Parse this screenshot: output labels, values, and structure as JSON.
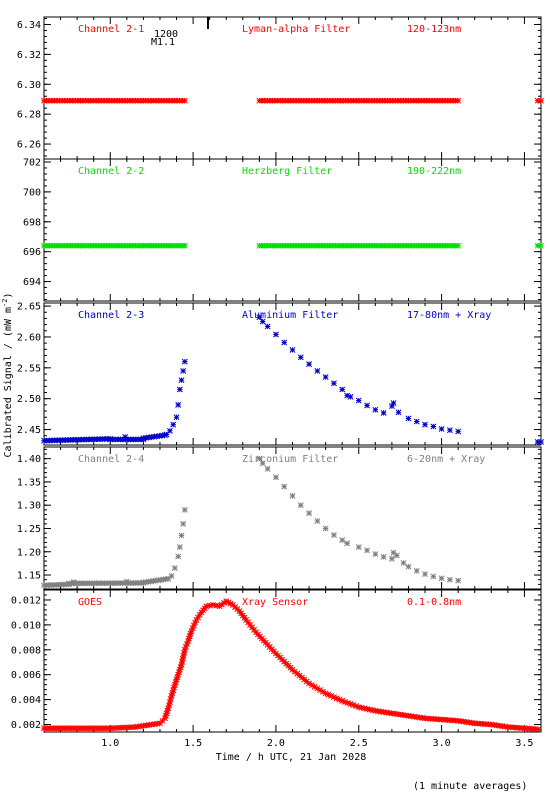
{
  "footnote": "(1 minute averages)",
  "xlabel": "Time / h UTC, 21 Jan 2028",
  "ylabel": "Calibrated Signal / (mW m^-2)",
  "ylabel_main": "Calibrated Signal / (mW m",
  "ylabel_exp": "-2",
  "ylabel_end": ")",
  "marker": {
    "time_label": "1200",
    "name": "M1.1"
  },
  "chart_data": [
    {
      "type": "scatter",
      "id": "ch1",
      "color": "#ff0000",
      "labels": {
        "channel": "Channel 2-1",
        "filter": "Lyman-alpha Filter",
        "range": "120-123nm"
      },
      "xlim": [
        0.6,
        3.6
      ],
      "ylim": [
        6.25,
        6.345
      ],
      "yticks": [
        6.26,
        6.28,
        6.3,
        6.32,
        6.34
      ],
      "ytick_labels": [
        "6.26",
        "6.28",
        "6.30",
        "6.32",
        "6.34"
      ],
      "segments": [
        {
          "x_start": 0.6,
          "x_end": 1.45,
          "y_start": 6.289,
          "y_end": 6.289
        },
        {
          "x_start": 1.9,
          "x_end": 3.1,
          "y_start": 6.289,
          "y_end": 6.289
        },
        {
          "x_start": 3.58,
          "x_end": 3.6,
          "y_start": 6.289,
          "y_end": 6.289
        }
      ],
      "points": []
    },
    {
      "type": "scatter",
      "id": "ch2",
      "color": "#00e000",
      "labels": {
        "channel": "Channel 2-2",
        "filter": "Herzberg Filter",
        "range": "190-222nm"
      },
      "xlim": [
        0.6,
        3.6
      ],
      "ylim": [
        692.7,
        702.2
      ],
      "yticks": [
        694,
        696,
        698,
        700,
        702
      ],
      "ytick_labels": [
        "694",
        "696",
        "698",
        "700",
        "702"
      ],
      "segments": [
        {
          "x_start": 0.6,
          "x_end": 1.45,
          "y_start": 696.4,
          "y_end": 696.4
        },
        {
          "x_start": 1.9,
          "x_end": 3.1,
          "y_start": 696.4,
          "y_end": 696.4
        },
        {
          "x_start": 3.58,
          "x_end": 3.6,
          "y_start": 696.4,
          "y_end": 696.4
        }
      ],
      "points": []
    },
    {
      "type": "scatter",
      "id": "ch3",
      "color": "#0000cc",
      "labels": {
        "channel": "Channel 2-3",
        "filter": "Aluminium Filter",
        "range": "17-80nm + Xray"
      },
      "xlim": [
        0.6,
        3.6
      ],
      "ylim": [
        2.425,
        2.655
      ],
      "yticks": [
        2.45,
        2.5,
        2.55,
        2.6,
        2.65
      ],
      "ytick_labels": [
        "2.45",
        "2.50",
        "2.55",
        "2.60",
        "2.65"
      ],
      "segments": [
        {
          "x_start": 0.6,
          "x_end": 1.0,
          "y_start": 2.432,
          "y_end": 2.435
        },
        {
          "x_start": 1.0,
          "x_end": 1.2,
          "y_start": 2.434,
          "y_end": 2.434
        },
        {
          "x_start": 1.2,
          "x_end": 1.33,
          "y_start": 2.436,
          "y_end": 2.441
        },
        {
          "x_start": 3.58,
          "x_end": 3.6,
          "y_start": 2.43,
          "y_end": 2.43
        }
      ],
      "points": [
        [
          1.09,
          2.438
        ],
        [
          1.34,
          2.442
        ],
        [
          1.36,
          2.448
        ],
        [
          1.38,
          2.458
        ],
        [
          1.4,
          2.47
        ],
        [
          1.41,
          2.49
        ],
        [
          1.42,
          2.515
        ],
        [
          1.43,
          2.53
        ],
        [
          1.44,
          2.545
        ],
        [
          1.45,
          2.56
        ],
        [
          1.9,
          2.632
        ],
        [
          1.92,
          2.625
        ],
        [
          1.95,
          2.617
        ],
        [
          2.0,
          2.604
        ],
        [
          2.05,
          2.591
        ],
        [
          2.1,
          2.579
        ],
        [
          2.15,
          2.567
        ],
        [
          2.2,
          2.556
        ],
        [
          2.25,
          2.545
        ],
        [
          2.3,
          2.535
        ],
        [
          2.35,
          2.525
        ],
        [
          2.4,
          2.515
        ],
        [
          2.43,
          2.505
        ],
        [
          2.45,
          2.503
        ],
        [
          2.5,
          2.497
        ],
        [
          2.55,
          2.489
        ],
        [
          2.6,
          2.482
        ],
        [
          2.65,
          2.477
        ],
        [
          2.7,
          2.488
        ],
        [
          2.71,
          2.493
        ],
        [
          2.74,
          2.478
        ],
        [
          2.8,
          2.468
        ],
        [
          2.85,
          2.463
        ],
        [
          2.9,
          2.458
        ],
        [
          2.95,
          2.455
        ],
        [
          3.0,
          2.451
        ],
        [
          3.05,
          2.449
        ],
        [
          3.1,
          2.447
        ]
      ]
    },
    {
      "type": "scatter",
      "id": "ch4",
      "color": "#808080",
      "labels": {
        "channel": "Channel 2-4",
        "filter": "Zirconium Filter",
        "range": "6-20nm + Xray"
      },
      "xlim": [
        0.6,
        3.6
      ],
      "ylim": [
        1.12,
        1.425
      ],
      "yticks": [
        1.15,
        1.2,
        1.25,
        1.3,
        1.35,
        1.4
      ],
      "ytick_labels": [
        "1.15",
        "1.20",
        "1.25",
        "1.30",
        "1.35",
        "1.40"
      ],
      "segments": [
        {
          "x_start": 0.6,
          "x_end": 0.75,
          "y_start": 1.128,
          "y_end": 1.13
        },
        {
          "x_start": 0.75,
          "x_end": 1.2,
          "y_start": 1.132,
          "y_end": 1.133
        },
        {
          "x_start": 1.2,
          "x_end": 1.35,
          "y_start": 1.134,
          "y_end": 1.142
        }
      ],
      "points": [
        [
          0.78,
          1.135
        ],
        [
          1.1,
          1.136
        ],
        [
          1.37,
          1.148
        ],
        [
          1.39,
          1.165
        ],
        [
          1.41,
          1.19
        ],
        [
          1.42,
          1.21
        ],
        [
          1.43,
          1.235
        ],
        [
          1.44,
          1.26
        ],
        [
          1.45,
          1.29
        ],
        [
          1.9,
          1.4
        ],
        [
          1.92,
          1.39
        ],
        [
          1.95,
          1.378
        ],
        [
          2.0,
          1.36
        ],
        [
          2.05,
          1.34
        ],
        [
          2.1,
          1.32
        ],
        [
          2.15,
          1.3
        ],
        [
          2.2,
          1.283
        ],
        [
          2.25,
          1.266
        ],
        [
          2.3,
          1.25
        ],
        [
          2.35,
          1.236
        ],
        [
          2.4,
          1.225
        ],
        [
          2.43,
          1.218
        ],
        [
          2.5,
          1.21
        ],
        [
          2.55,
          1.203
        ],
        [
          2.6,
          1.195
        ],
        [
          2.65,
          1.189
        ],
        [
          2.7,
          1.185
        ],
        [
          2.71,
          1.198
        ],
        [
          2.73,
          1.192
        ],
        [
          2.77,
          1.176
        ],
        [
          2.8,
          1.168
        ],
        [
          2.85,
          1.159
        ],
        [
          2.9,
          1.152
        ],
        [
          2.95,
          1.147
        ],
        [
          3.0,
          1.143
        ],
        [
          3.05,
          1.14
        ],
        [
          3.1,
          1.138
        ]
      ]
    },
    {
      "type": "scatter",
      "id": "goes",
      "color": "#ff0000",
      "labels": {
        "channel": "GOES",
        "filter": "Xray Sensor",
        "range": "0.1-0.8nm"
      },
      "xlim": [
        0.6,
        3.6
      ],
      "ylim": [
        0.0014,
        0.0128
      ],
      "yticks": [
        0.002,
        0.004,
        0.006,
        0.008,
        0.01,
        0.012
      ],
      "ytick_labels": [
        "0.002",
        "0.004",
        "0.006",
        "0.008",
        "0.010",
        "0.012"
      ],
      "xticks": [
        1.0,
        1.5,
        2.0,
        2.5,
        3.0,
        3.5
      ],
      "xtick_labels": [
        "1.0",
        "1.5",
        "2.0",
        "2.5",
        "3.0",
        "3.5"
      ],
      "curve": [
        [
          0.6,
          0.0017
        ],
        [
          1.0,
          0.0017
        ],
        [
          1.15,
          0.0018
        ],
        [
          1.25,
          0.002
        ],
        [
          1.3,
          0.0021
        ],
        [
          1.33,
          0.0025
        ],
        [
          1.35,
          0.0033
        ],
        [
          1.37,
          0.0043
        ],
        [
          1.39,
          0.0052
        ],
        [
          1.41,
          0.006
        ],
        [
          1.43,
          0.0068
        ],
        [
          1.45,
          0.008
        ],
        [
          1.47,
          0.0087
        ],
        [
          1.49,
          0.0095
        ],
        [
          1.52,
          0.0104
        ],
        [
          1.55,
          0.011
        ],
        [
          1.58,
          0.0115
        ],
        [
          1.62,
          0.0116
        ],
        [
          1.66,
          0.0115
        ],
        [
          1.7,
          0.0119
        ],
        [
          1.74,
          0.0116
        ],
        [
          1.78,
          0.0111
        ],
        [
          1.82,
          0.0104
        ],
        [
          1.88,
          0.0094
        ],
        [
          1.95,
          0.0084
        ],
        [
          2.0,
          0.0077
        ],
        [
          2.1,
          0.0064
        ],
        [
          2.2,
          0.0053
        ],
        [
          2.3,
          0.0045
        ],
        [
          2.4,
          0.0039
        ],
        [
          2.5,
          0.0034
        ],
        [
          2.6,
          0.0031
        ],
        [
          2.7,
          0.0029
        ],
        [
          2.8,
          0.0027
        ],
        [
          2.9,
          0.0025
        ],
        [
          3.0,
          0.0024
        ],
        [
          3.1,
          0.0023
        ],
        [
          3.2,
          0.0021
        ],
        [
          3.3,
          0.002
        ],
        [
          3.4,
          0.0018
        ],
        [
          3.5,
          0.0017
        ],
        [
          3.6,
          0.0016
        ]
      ]
    }
  ]
}
